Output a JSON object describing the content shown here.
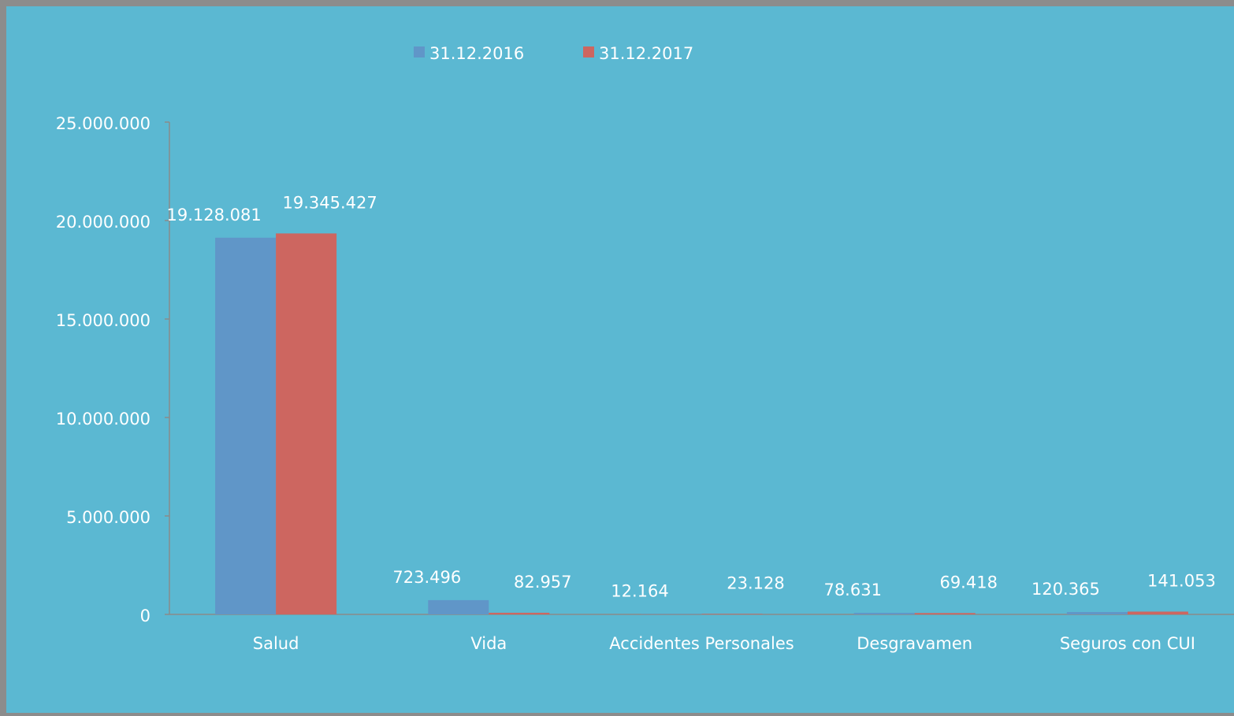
{
  "chart_data": {
    "type": "bar",
    "categories": [
      "Salud",
      "Vida",
      "Accidentes Personales",
      "Desgravamen",
      "Seguros con CUI"
    ],
    "series": [
      {
        "name": "31.12.2016",
        "color": "#6096c8",
        "values": [
          19128081,
          723496,
          12164,
          78631,
          120365
        ],
        "value_labels": [
          "19.128.081",
          "723.496",
          "12.164",
          "78.631",
          "120.365"
        ]
      },
      {
        "name": "31.12.2017",
        "color": "#cd6660",
        "values": [
          19345427,
          82957,
          23128,
          69418,
          141053
        ],
        "value_labels": [
          "19.345.427",
          "82.957",
          "23.128",
          "69.418",
          "141.053"
        ]
      }
    ],
    "ylim": [
      0,
      25000000
    ],
    "yticks": [
      0,
      {
        "value": 5000000,
        "label": "5.000.000"
      },
      {
        "value": 10000000,
        "label": "10.000.000"
      },
      {
        "value": 15000000,
        "label": "15.000.000"
      },
      {
        "value": 20000000,
        "label": "20.000.000"
      },
      {
        "value": 25000000,
        "label": "25.000.000"
      }
    ],
    "legend": "top"
  }
}
